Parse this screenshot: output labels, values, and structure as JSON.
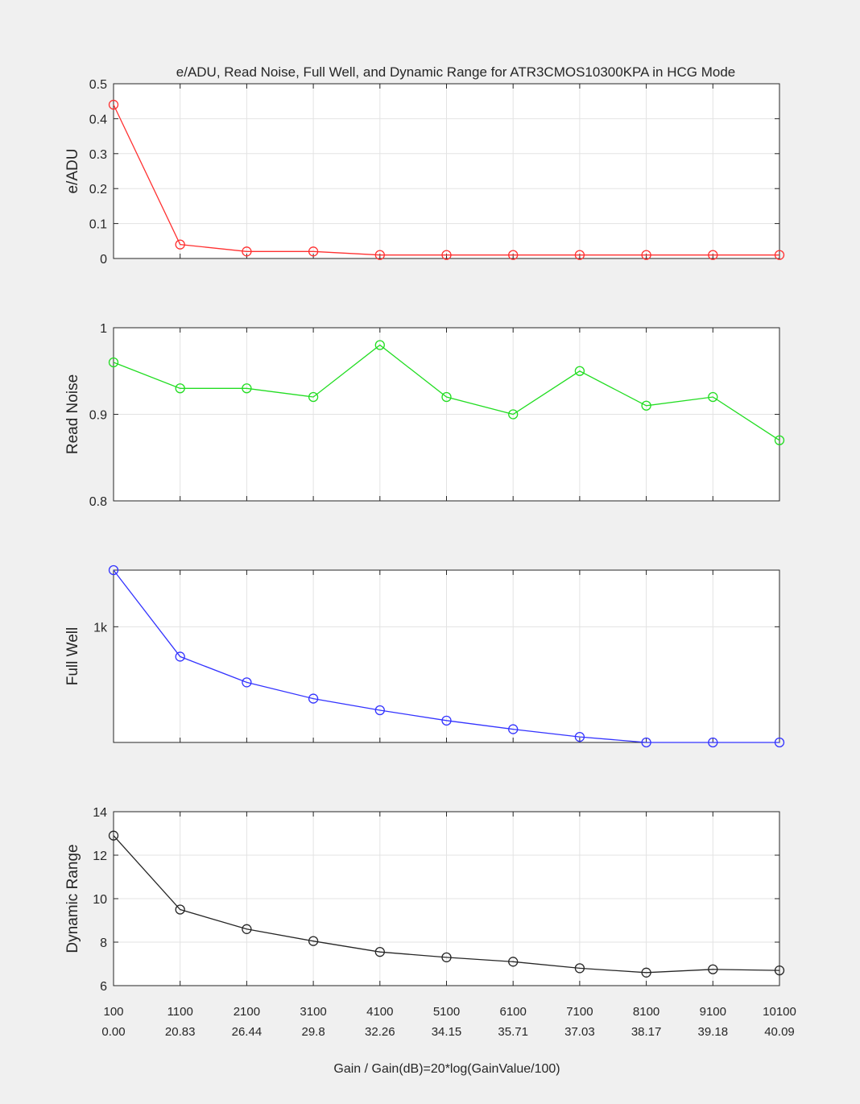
{
  "figure": {
    "title": "e/ADU, Read Noise, Full Well, and Dynamic Range for ATR3CMOS10300KPA in HCG Mode",
    "xlabel": "Gain / Gain(dB)=20*log(GainValue/100)",
    "x_tick_labels_gain": [
      "100",
      "1100",
      "2100",
      "3100",
      "4100",
      "5100",
      "6100",
      "7100",
      "8100",
      "9100",
      "10100"
    ],
    "x_tick_labels_db": [
      "0.00",
      "20.83",
      "26.44",
      "29.8",
      "32.26",
      "34.15",
      "35.71",
      "37.03",
      "38.17",
      "39.18",
      "40.09"
    ]
  },
  "chart_data": [
    {
      "type": "line",
      "ylabel": "e/ADU",
      "x": [
        100,
        1100,
        2100,
        3100,
        4100,
        5100,
        6100,
        7100,
        8100,
        9100,
        10100
      ],
      "y": [
        0.44,
        0.04,
        0.02,
        0.02,
        0.01,
        0.01,
        0.01,
        0.01,
        0.01,
        0.01,
        0.01
      ],
      "xlim": [
        100,
        10100
      ],
      "ylim": [
        0,
        0.5
      ],
      "yticks": [
        0,
        0.1,
        0.2,
        0.3,
        0.4,
        0.5
      ],
      "ytick_labels": [
        "0",
        "0.1",
        "0.2",
        "0.3",
        "0.4",
        "0.5"
      ],
      "y_scale": "linear",
      "grid": true,
      "marker": "circle",
      "color": "#ff3030"
    },
    {
      "type": "line",
      "ylabel": "Read Noise",
      "x": [
        100,
        1100,
        2100,
        3100,
        4100,
        5100,
        6100,
        7100,
        8100,
        9100,
        10100
      ],
      "y": [
        0.96,
        0.93,
        0.93,
        0.92,
        0.98,
        0.92,
        0.9,
        0.95,
        0.91,
        0.92,
        0.87
      ],
      "xlim": [
        100,
        10100
      ],
      "ylim": [
        0.8,
        1
      ],
      "yticks": [
        0.8,
        0.9,
        1
      ],
      "ytick_labels": [
        "0.8",
        "0.9",
        "1"
      ],
      "y_scale": "linear",
      "grid": true,
      "marker": "circle",
      "color": "#22dd22"
    },
    {
      "type": "line",
      "ylabel": "Full Well",
      "x": [
        100,
        1100,
        2100,
        3100,
        4100,
        5100,
        6100,
        7100,
        8100,
        9100,
        10100
      ],
      "y": [
        3000,
        560,
        340,
        248,
        198,
        162,
        137,
        118,
        106,
        106,
        106
      ],
      "xlim": [
        100,
        10100
      ],
      "ylim": [
        106,
        3000
      ],
      "yticks": [
        1000
      ],
      "ytick_labels": [
        "1k"
      ],
      "y_scale": "log",
      "grid": true,
      "marker": "circle",
      "color": "#3333ff"
    },
    {
      "type": "line",
      "ylabel": "Dynamic Range",
      "x": [
        100,
        1100,
        2100,
        3100,
        4100,
        5100,
        6100,
        7100,
        8100,
        9100,
        10100
      ],
      "y": [
        12.9,
        9.5,
        8.6,
        8.05,
        7.55,
        7.3,
        7.1,
        6.8,
        6.6,
        6.75,
        6.7
      ],
      "xlim": [
        100,
        10100
      ],
      "ylim": [
        6,
        14
      ],
      "yticks": [
        6,
        8,
        10,
        12,
        14
      ],
      "ytick_labels": [
        "6",
        "8",
        "10",
        "12",
        "14"
      ],
      "y_scale": "linear",
      "grid": true,
      "marker": "circle",
      "color": "#262626"
    }
  ]
}
